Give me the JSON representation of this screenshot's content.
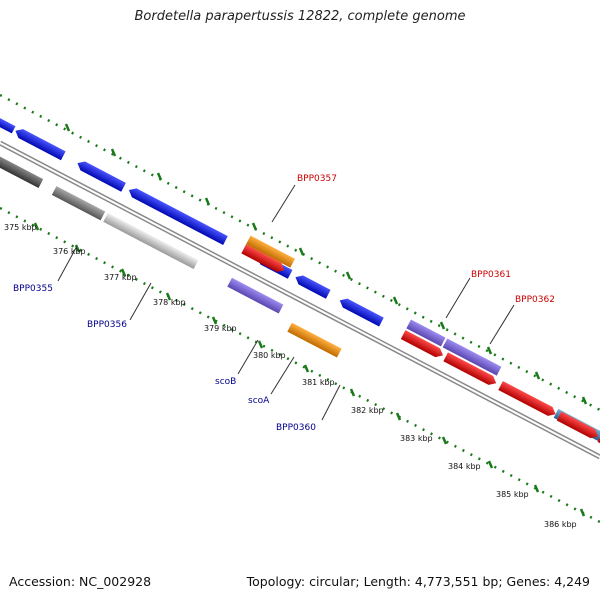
{
  "title": "Bordetella parapertussis 12822, complete genome",
  "footer": {
    "accession": "Accession: NC_002928",
    "summary": "Topology: circular; Length: 4,773,551 bp; Genes: 4,249"
  },
  "tick_labels": [
    "375 kbp",
    "376 kbp",
    "377 kbp",
    "378 kbp",
    "379 kbp",
    "380 kbp",
    "381 kbp",
    "382 kbp",
    "383 kbp",
    "384 kbp",
    "385 kbp",
    "386 kbp"
  ],
  "gene_labels": {
    "bpp0355": "BPP0355",
    "bpp0356": "BPP0356",
    "bpp0357": "BPP0357",
    "scob": "scoB",
    "scoa": "scoA",
    "bpp0360": "BPP0360",
    "bpp0361": "BPP0361",
    "bpp0362": "BPP0362"
  },
  "colors": {
    "blue_gene": "#0a14e6",
    "red_gene": "#e60a14",
    "orange_gene": "#f08c00",
    "purple_gene": "#7864d2",
    "gray_dark": "#555555",
    "gray_mid": "#808080",
    "gray_light": "#c8c8c8",
    "steelblue_gene": "#4682b4",
    "dotted_green": "#1a7a1a",
    "backbone": "#909090"
  }
}
